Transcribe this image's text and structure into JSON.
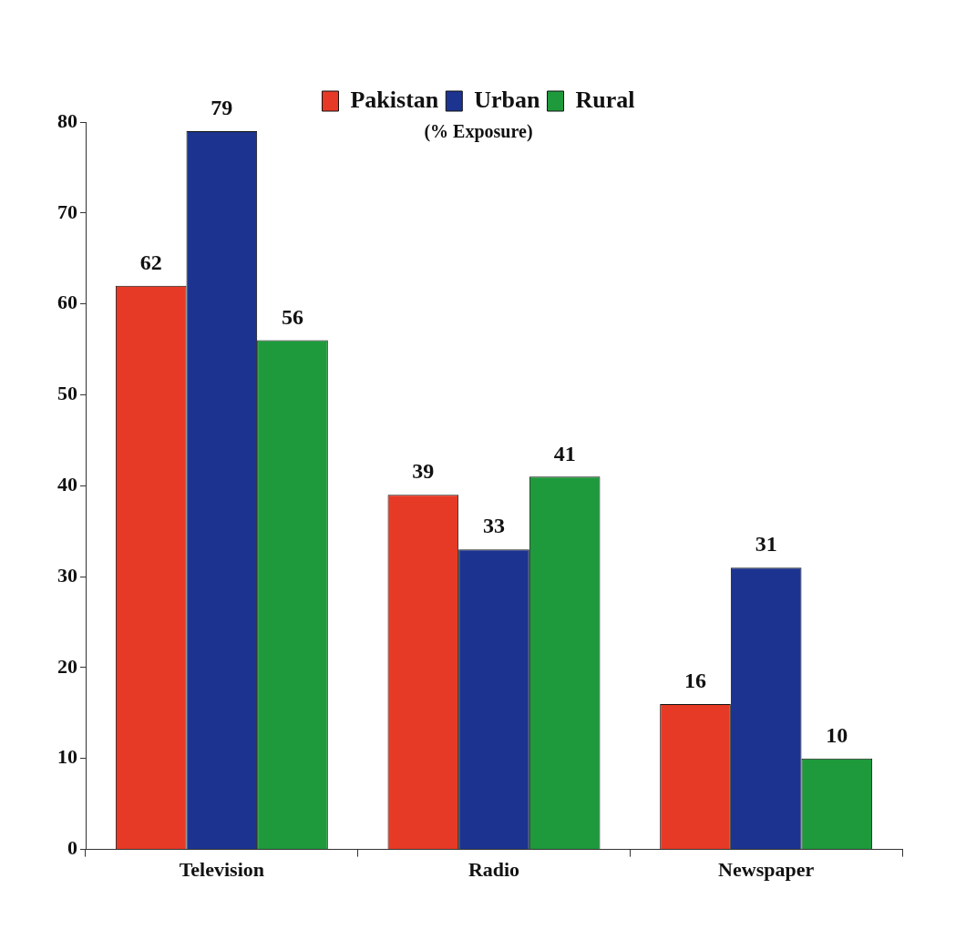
{
  "chart_data": {
    "type": "bar",
    "categories": [
      "Television",
      "Radio",
      "Newspaper"
    ],
    "series": [
      {
        "name": "Pakistan",
        "color": "#e63a26",
        "values": [
          62,
          39,
          16
        ]
      },
      {
        "name": "Urban",
        "color": "#1c3490",
        "values": [
          79,
          33,
          31
        ]
      },
      {
        "name": "Rural",
        "color": "#1e9a3c",
        "values": [
          56,
          41,
          10
        ]
      }
    ],
    "ylim": [
      0,
      80
    ],
    "yticks": [
      0,
      10,
      20,
      30,
      40,
      50,
      60,
      70,
      80
    ],
    "grid": false,
    "legend": "top right",
    "data_labels": true,
    "annotations": [
      "(% Exposure)"
    ]
  }
}
